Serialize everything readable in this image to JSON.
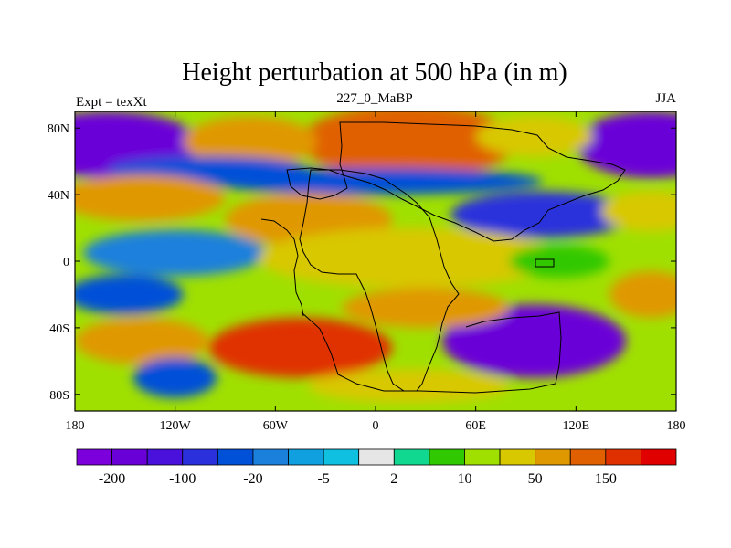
{
  "plot": {
    "title": "Height perturbation at 500 hPa (in m)",
    "left_label": "Expt = texXt",
    "center_label": "227_0_MaBP",
    "right_label": "JJA"
  },
  "chart_data": {
    "type": "heatmap",
    "title": "Height perturbation at 500 hPa (in m)",
    "subtitle_left": "Expt = texXt",
    "subtitle_center": "227_0_MaBP",
    "subtitle_right": "JJA",
    "projection": "cylindrical-equidistant",
    "xlim": [
      -180,
      180
    ],
    "ylim": [
      -90,
      90
    ],
    "x_ticks": [
      {
        "value": -180,
        "label": "180"
      },
      {
        "value": -120,
        "label": "120W"
      },
      {
        "value": -60,
        "label": "60W"
      },
      {
        "value": 0,
        "label": "0"
      },
      {
        "value": 60,
        "label": "60E"
      },
      {
        "value": 120,
        "label": "120E"
      },
      {
        "value": 180,
        "label": "180"
      }
    ],
    "y_ticks": [
      {
        "value": 80,
        "label": "80N"
      },
      {
        "value": 40,
        "label": "40N"
      },
      {
        "value": 0,
        "label": "0"
      },
      {
        "value": -40,
        "label": "40S"
      },
      {
        "value": -80,
        "label": "80S"
      }
    ],
    "colorbar": {
      "orientation": "horizontal",
      "colors": [
        "#7b00dc",
        "#6a00d8",
        "#4a10dc",
        "#2a30dc",
        "#0050d8",
        "#1a80dc",
        "#10a0e0",
        "#10c0e0",
        "#e6e6e6",
        "#10d890",
        "#30c800",
        "#a0e000",
        "#d8c800",
        "#e09800",
        "#e06000",
        "#e03000",
        "#e00000"
      ],
      "labels": [
        {
          "boundary": 1,
          "text": "-200"
        },
        {
          "boundary": 3,
          "text": "-100"
        },
        {
          "boundary": 5,
          "text": "-20"
        },
        {
          "boundary": 7,
          "text": "-5"
        },
        {
          "boundary": 9,
          "text": "2"
        },
        {
          "boundary": 11,
          "text": "10"
        },
        {
          "boundary": 13,
          "text": "50"
        },
        {
          "boundary": 15,
          "text": "150"
        }
      ]
    },
    "fields": [
      {
        "lon": -160,
        "lat": 70,
        "value": -180,
        "rx": 55,
        "ry": 20
      },
      {
        "lon": 165,
        "lat": 70,
        "value": -190,
        "rx": 45,
        "ry": 20
      },
      {
        "lon": 20,
        "lat": 72,
        "value": 130,
        "rx": 65,
        "ry": 22
      },
      {
        "lon": -75,
        "lat": 72,
        "value": 60,
        "rx": 40,
        "ry": 15
      },
      {
        "lon": 95,
        "lat": 75,
        "value": 45,
        "rx": 35,
        "ry": 12
      },
      {
        "lon": 0,
        "lat": 48,
        "value": -35,
        "rx": 100,
        "ry": 8
      },
      {
        "lon": -100,
        "lat": 55,
        "value": -30,
        "rx": 60,
        "ry": 8
      },
      {
        "lon": -140,
        "lat": 38,
        "value": 60,
        "rx": 50,
        "ry": 14
      },
      {
        "lon": -40,
        "lat": 25,
        "value": 50,
        "rx": 50,
        "ry": 16
      },
      {
        "lon": 100,
        "lat": 28,
        "value": -80,
        "rx": 55,
        "ry": 14
      },
      {
        "lon": 165,
        "lat": 30,
        "value": 40,
        "rx": 30,
        "ry": 12
      },
      {
        "lon": -120,
        "lat": 5,
        "value": -20,
        "rx": 55,
        "ry": 14
      },
      {
        "lon": 20,
        "lat": 2,
        "value": 20,
        "rx": 90,
        "ry": 18
      },
      {
        "lon": 110,
        "lat": 0,
        "value": 6,
        "rx": 30,
        "ry": 10
      },
      {
        "lon": -150,
        "lat": -20,
        "value": -25,
        "rx": 35,
        "ry": 12
      },
      {
        "lon": -45,
        "lat": -52,
        "value": 150,
        "rx": 55,
        "ry": 18
      },
      {
        "lon": -140,
        "lat": -48,
        "value": 60,
        "rx": 40,
        "ry": 14
      },
      {
        "lon": -120,
        "lat": -70,
        "value": -50,
        "rx": 25,
        "ry": 12
      },
      {
        "lon": 95,
        "lat": -48,
        "value": -200,
        "rx": 55,
        "ry": 22
      },
      {
        "lon": 165,
        "lat": -20,
        "value": 55,
        "rx": 25,
        "ry": 14
      },
      {
        "lon": 30,
        "lat": -28,
        "value": 60,
        "rx": 50,
        "ry": 12
      },
      {
        "lon": 20,
        "lat": -75,
        "value": 35,
        "rx": 60,
        "ry": 10
      }
    ]
  }
}
